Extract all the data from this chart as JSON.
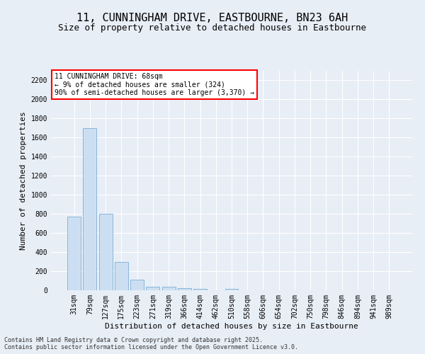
{
  "title_line1": "11, CUNNINGHAM DRIVE, EASTBOURNE, BN23 6AH",
  "title_line2": "Size of property relative to detached houses in Eastbourne",
  "xlabel": "Distribution of detached houses by size in Eastbourne",
  "ylabel": "Number of detached properties",
  "categories": [
    "31sqm",
    "79sqm",
    "127sqm",
    "175sqm",
    "223sqm",
    "271sqm",
    "319sqm",
    "366sqm",
    "414sqm",
    "462sqm",
    "510sqm",
    "558sqm",
    "606sqm",
    "654sqm",
    "702sqm",
    "750sqm",
    "798sqm",
    "846sqm",
    "894sqm",
    "941sqm",
    "989sqm"
  ],
  "values": [
    770,
    1700,
    800,
    300,
    115,
    40,
    35,
    25,
    15,
    0,
    15,
    0,
    0,
    0,
    0,
    0,
    0,
    0,
    0,
    0,
    0
  ],
  "bar_color": "#ccdff2",
  "bar_edge_color": "#7aafd4",
  "ylim": [
    0,
    2300
  ],
  "yticks": [
    0,
    200,
    400,
    600,
    800,
    1000,
    1200,
    1400,
    1600,
    1800,
    2000,
    2200
  ],
  "annotation_box_text": "11 CUNNINGHAM DRIVE: 68sqm\n← 9% of detached houses are smaller (324)\n90% of semi-detached houses are larger (3,370) →",
  "footer_line1": "Contains HM Land Registry data © Crown copyright and database right 2025.",
  "footer_line2": "Contains public sector information licensed under the Open Government Licence v3.0.",
  "bg_color": "#e8eef6",
  "plot_bg_color": "#e8eef6",
  "title_fontsize": 11,
  "subtitle_fontsize": 9,
  "label_fontsize": 8,
  "tick_fontsize": 7,
  "annot_fontsize": 7,
  "footer_fontsize": 6
}
